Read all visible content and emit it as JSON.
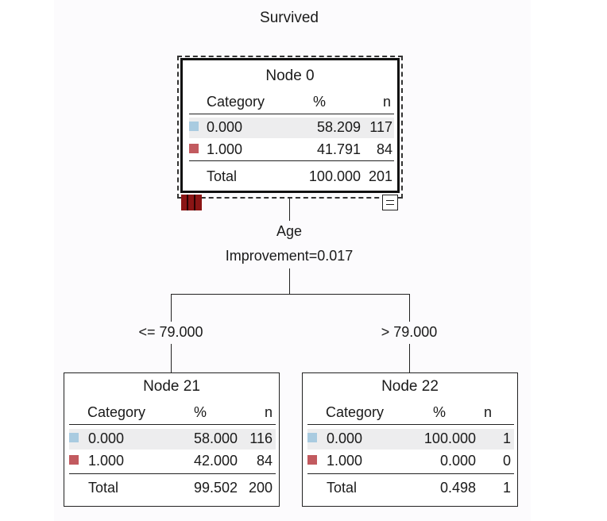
{
  "target": "Survived",
  "colors": {
    "cat0": "#a9cbe0",
    "cat1": "#c25a5f",
    "nodebar": "#8b1515"
  },
  "columns": {
    "category": "Category",
    "percent": "%",
    "n": "n"
  },
  "split": {
    "variable": "Age",
    "improvement": "Improvement=0.017"
  },
  "nodes": {
    "n0": {
      "title": "Node 0",
      "rows": [
        {
          "category": "0.000",
          "percent": "58.209",
          "n": "117"
        },
        {
          "category": "1.000",
          "percent": "41.791",
          "n": "84"
        }
      ],
      "total": {
        "label": "Total",
        "percent": "100.000",
        "n": "201"
      }
    },
    "n21": {
      "title": "Node 21",
      "branch": "<= 79.000",
      "rows": [
        {
          "category": "0.000",
          "percent": "58.000",
          "n": "116"
        },
        {
          "category": "1.000",
          "percent": "42.000",
          "n": "84"
        }
      ],
      "total": {
        "label": "Total",
        "percent": "99.502",
        "n": "200"
      }
    },
    "n22": {
      "title": "Node 22",
      "branch": "> 79.000",
      "rows": [
        {
          "category": "0.000",
          "percent": "100.000",
          "n": "1"
        },
        {
          "category": "1.000",
          "percent": "0.000",
          "n": "0"
        }
      ],
      "total": {
        "label": "Total",
        "percent": "0.498",
        "n": "1"
      }
    }
  },
  "icons": {
    "collapse": "collapse-minus-icon",
    "node_bar": "node-bar-icon"
  }
}
